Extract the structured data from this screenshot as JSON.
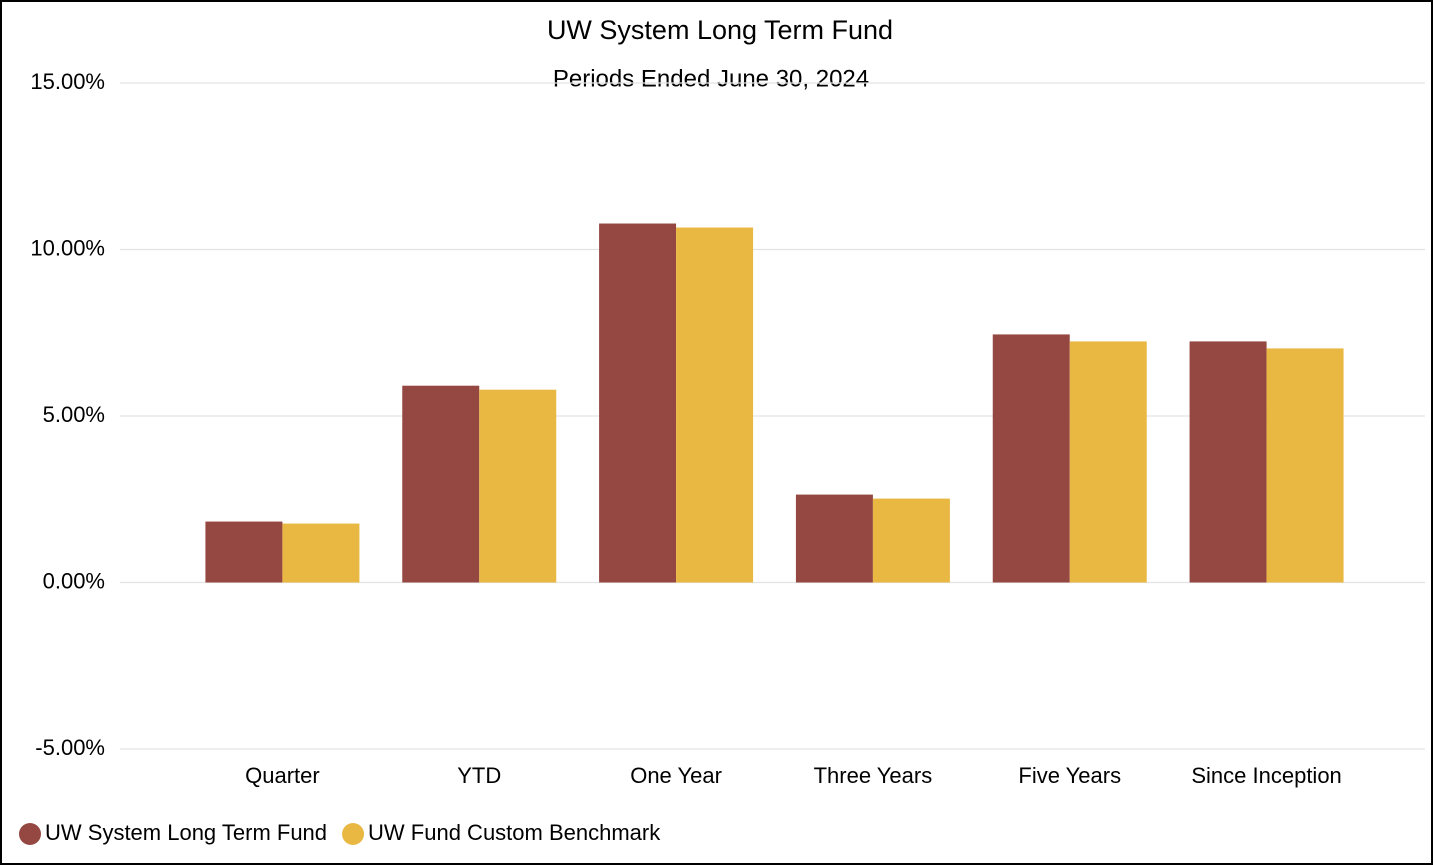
{
  "chart_data": {
    "type": "bar",
    "title": "UW System Long Term Fund",
    "subtitle": "Periods Ended June 30, 2024",
    "categories": [
      "Quarter",
      "YTD",
      "One Year",
      "Three Years",
      "Five Years",
      "Since Inception"
    ],
    "series": [
      {
        "name": "UW System Long Term Fund",
        "color": "#954842",
        "values": [
          1.83,
          5.91,
          10.78,
          2.64,
          7.45,
          7.24
        ]
      },
      {
        "name": "UW Fund Custom Benchmark",
        "color": "#E9B843",
        "values": [
          1.77,
          5.79,
          10.66,
          2.52,
          7.24,
          7.03
        ]
      }
    ],
    "ylim": [
      -5,
      15
    ],
    "yticks": [
      {
        "value": -5,
        "label": "-5.00%"
      },
      {
        "value": 0,
        "label": "0.00%"
      },
      {
        "value": 5,
        "label": "5.00%"
      },
      {
        "value": 10,
        "label": "10.00%"
      },
      {
        "value": 15,
        "label": "15.00%"
      }
    ],
    "grid": true,
    "legend": "bottom"
  }
}
